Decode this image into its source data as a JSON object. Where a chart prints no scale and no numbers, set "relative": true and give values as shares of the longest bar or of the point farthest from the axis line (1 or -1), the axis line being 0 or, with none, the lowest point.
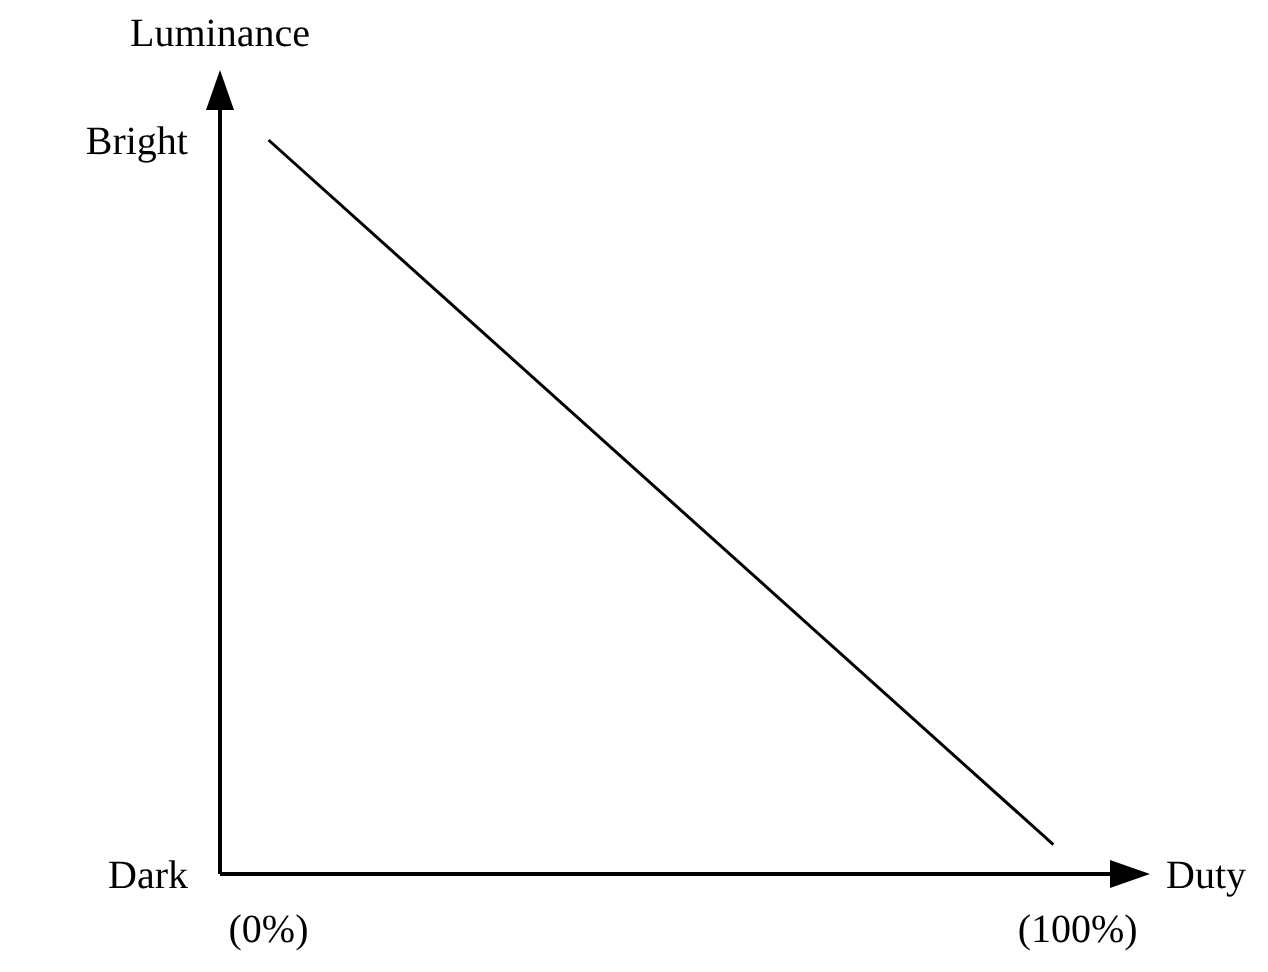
{
  "chart_data": {
    "type": "line",
    "xlabel": "Duty",
    "ylabel": "Luminance",
    "relative": true,
    "x": [
      0,
      97
    ],
    "series": [
      {
        "color": "#000000",
        "values": [
          1,
          0.04
        ]
      }
    ],
    "xlim": [
      -6,
      104
    ],
    "xticks": [
      {
        "value": 0,
        "label": "(0%)"
      },
      {
        "value": 100,
        "label": "(100%)"
      }
    ],
    "annotations": [
      "Bright",
      "Dark"
    ]
  }
}
